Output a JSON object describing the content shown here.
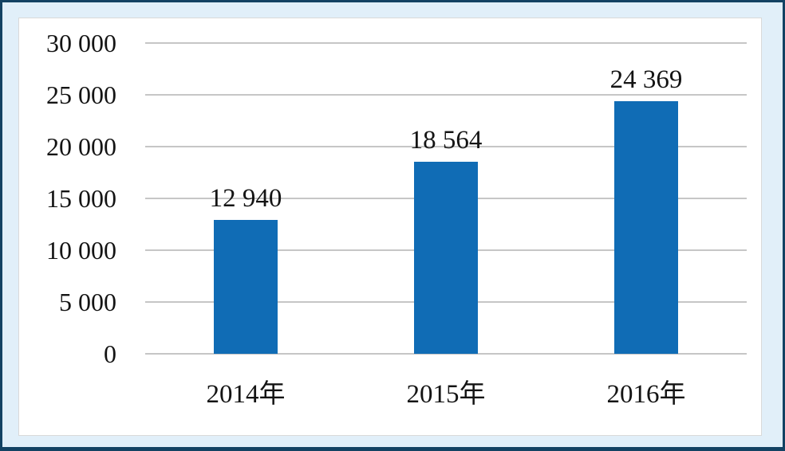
{
  "chart_data": {
    "type": "bar",
    "title": "",
    "xlabel": "",
    "ylabel": "",
    "categories": [
      "2014年",
      "2015年",
      "2016年"
    ],
    "values": [
      12940,
      18564,
      24369
    ],
    "value_labels": [
      "12 940",
      "18 564",
      "24 369"
    ],
    "series": [
      {
        "name": "",
        "values": [
          12940,
          18564,
          24369
        ]
      }
    ],
    "y_axis": {
      "min": 0,
      "max": 30000,
      "step": 5000,
      "tick_labels": [
        "30 000",
        "25 000",
        "20 000",
        "15 000",
        "10 000",
        "5 000",
        "0"
      ]
    },
    "grid": "horizontal",
    "legend": "none",
    "colors": {
      "bar": "#106CB5",
      "gridline": "#C6C6C6",
      "text": "#141414",
      "panel_background": "#FFFFFF",
      "panel_border": "#D9D9D9",
      "frame_background": "#E1EFF9",
      "frame_border": "#134263"
    }
  }
}
